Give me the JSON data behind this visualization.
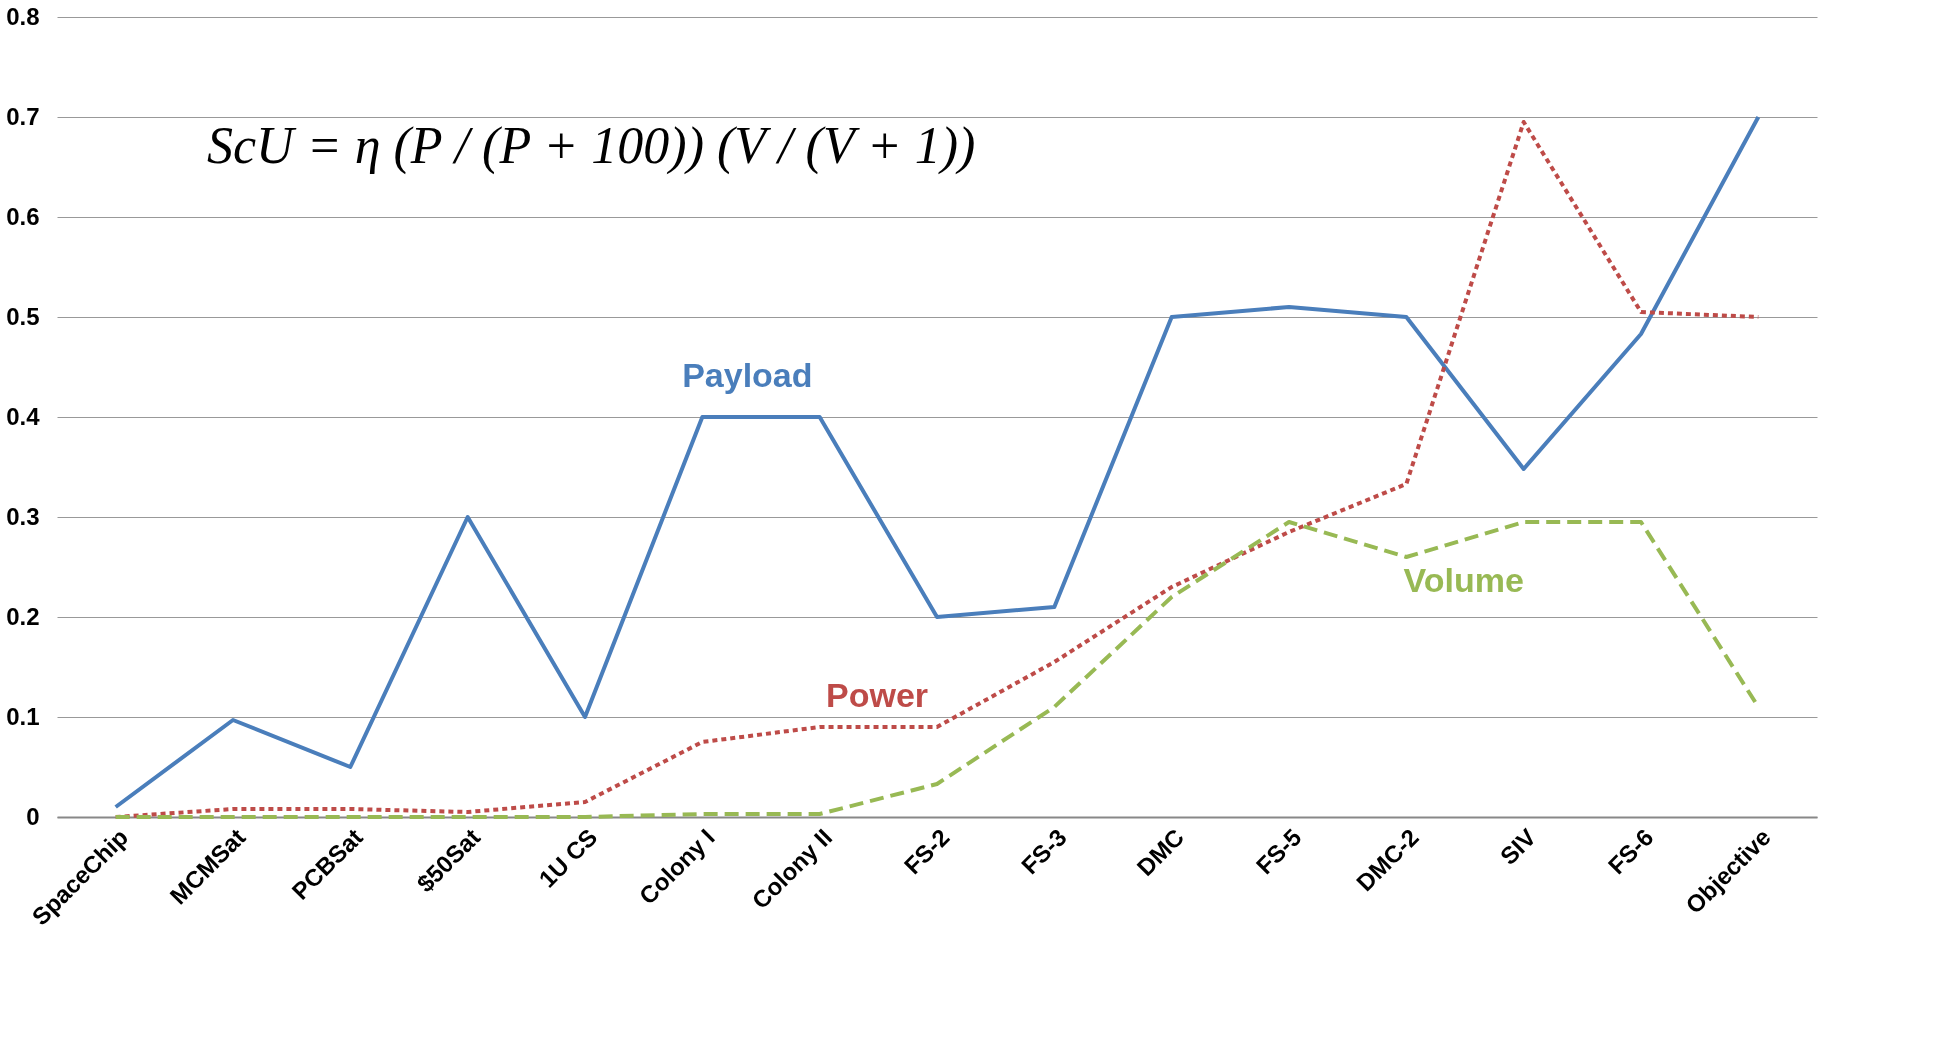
{
  "chart_data": {
    "type": "line",
    "categories": [
      "SpaceChip",
      "MCMSat",
      "PCBSat",
      "$50Sat",
      "1U CS",
      "Colony I",
      "Colony II",
      "FS-2",
      "FS-3",
      "DMC",
      "FS-5",
      "DMC-2",
      "SIV",
      "FS-6",
      "Objective"
    ],
    "series": [
      {
        "name": "Payload",
        "color": "#4a7ebb",
        "line_style": "solid",
        "values": [
          0.01,
          0.097,
          0.05,
          0.3,
          0.1,
          0.4,
          0.4,
          0.2,
          0.21,
          0.5,
          0.51,
          0.5,
          0.348,
          0.483,
          0.7
        ]
      },
      {
        "name": "Power",
        "color": "#be4b48",
        "line_style": "dotted",
        "values": [
          0,
          0.008,
          0.008,
          0.005,
          0.015,
          0.075,
          0.09,
          0.09,
          0.155,
          0.23,
          0.285,
          0.333,
          0.695,
          0.505,
          0.5
        ]
      },
      {
        "name": "Volume",
        "color": "#98b954",
        "line_style": "dashed",
        "values": [
          0,
          0,
          0,
          0,
          0,
          0.003,
          0.003,
          0.033,
          0.11,
          0.22,
          0.295,
          0.26,
          0.295,
          0.295,
          0.11
        ]
      }
    ],
    "ylim": [
      0,
      0.8
    ],
    "yticks": [
      0,
      0.1,
      0.2,
      0.3,
      0.4,
      0.5,
      0.6,
      0.7,
      0.8
    ],
    "grid": "y",
    "marker": "none",
    "annotations": [
      "ScU = η (P / (P + 100)) (V / (V + 1))"
    ]
  }
}
